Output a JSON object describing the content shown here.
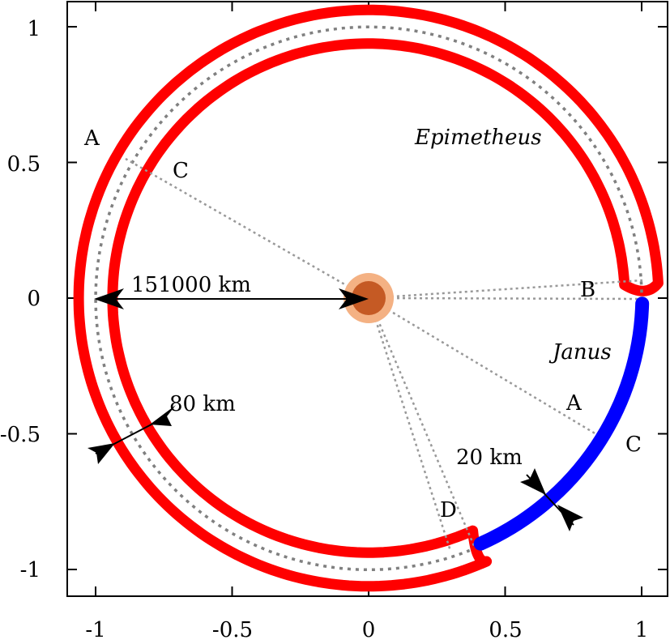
{
  "axes": {
    "x_ticks": [
      {
        "value": -1,
        "label": "-1"
      },
      {
        "value": -0.5,
        "label": "-0.5"
      },
      {
        "value": 0,
        "label": "0"
      },
      {
        "value": 0.5,
        "label": "0.5"
      },
      {
        "value": 1,
        "label": "1"
      }
    ],
    "y_ticks": [
      {
        "value": 1,
        "label": "1"
      },
      {
        "value": 0.5,
        "label": "0.5"
      },
      {
        "value": 0,
        "label": "0"
      },
      {
        "value": -0.5,
        "label": "-0.5"
      },
      {
        "value": -1,
        "label": "-1"
      }
    ]
  },
  "labels": {
    "epimetheus": "Epimetheus",
    "janus": "Janus",
    "radius": "151000 km",
    "width_epimetheus": "80 km",
    "width_janus": "20 km",
    "point_a_left": "A",
    "point_c_left": "C",
    "point_b": "B",
    "point_a_right": "A",
    "point_c_right": "C",
    "point_d": "D"
  },
  "colors": {
    "epimetheus_orbit": "#ff0000",
    "janus_orbit": "#0000ff",
    "reference_orbit": "#808080",
    "planet_outer": "#f4b183",
    "planet_inner": "#c55a24"
  }
}
